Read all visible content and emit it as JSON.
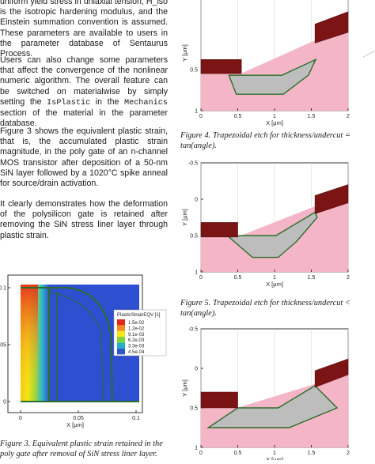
{
  "left_column": {
    "paragraphs": [
      {
        "id": "p1",
        "segments": [
          {
            "text": "uniform yield stress in uniaxial tension, H_iso"
          },
          {
            "text": " is the isotropic hardening modulus, and the Einstein summation convention is assumed. These parameters are available to users in the parameter database of Sentaurus Process."
          }
        ]
      },
      {
        "id": "p2",
        "segments": [
          {
            "text": "Users can also change some parameters that affect the convergence of the nonlinear numeric algorithm. The overall feature can be switched on materialwise by simply setting the "
          },
          {
            "text": "IsPlastic",
            "mono": true
          },
          {
            "text": " in the "
          },
          {
            "text": "Mechanics",
            "mono": true
          },
          {
            "text": " section of the material in the parameter database."
          }
        ]
      },
      {
        "id": "p3",
        "segments": [
          {
            "text": "Figure 3 shows the equivalent plastic strain, that is, the accumulated plastic strain magnitude, in the poly gate of an n-channel MOS transistor after deposition of a 50-nm SiN layer followed by a 1020°C spike anneal for source/drain activation."
          }
        ]
      },
      {
        "id": "p4",
        "segments": [
          {
            "text": "It clearly demonstrates how the deformation of the polysilicon gate is retained after removing the SiN stress liner layer through plastic strain."
          }
        ]
      }
    ],
    "figure3": {
      "legend_title": "PlasticStrainEQV [1]",
      "legend_values": [
        "1.5e-02",
        "1.2e-02",
        "9.1e-03",
        "6.2e-03",
        "3.3e-03",
        "4.5e-04"
      ],
      "legend_colors": [
        "#e3261c",
        "#f28a1e",
        "#f5e616",
        "#7fd23a",
        "#22b2c8",
        "#2e56c8"
      ],
      "y_ticks": [
        "0.1",
        "0.05",
        "0"
      ],
      "x_ticks": [
        "0",
        "0.05",
        "0.1"
      ],
      "x_label": "X [μm]",
      "caption": "Figure 3. Equivalent plastic strain retained in the poly gate after removal of SiN stress liner layer."
    }
  },
  "right_column": {
    "plots": [
      {
        "id": "fig-top",
        "y_ticks": [
          "0.5",
          "1"
        ],
        "x_ticks": [
          "0",
          "0.5",
          "1",
          "1.5",
          "2"
        ],
        "x_label": "X [μm]",
        "y_label": "Y [μm]",
        "caption": "Figure 4. Trapezoidal etch for thickness/undercut = tan(angle)."
      },
      {
        "id": "fig-mid",
        "y_ticks": [
          "-0.5",
          "0",
          "0.5",
          "1"
        ],
        "x_ticks": [
          "0",
          "0.5",
          "1",
          "1.5",
          "2"
        ],
        "x_label": "X [μm]",
        "y_label": "Y [μm]",
        "caption": "Figure 5. Trapezoidal etch for thickness/undercut < tan(angle)."
      },
      {
        "id": "fig-bottom",
        "y_ticks": [
          "-0.5",
          "0",
          "0.5",
          "1"
        ],
        "x_ticks": [
          "0",
          "0.5",
          "1",
          "1.5",
          "2"
        ],
        "x_label": "X [μm]",
        "y_label": "Y [μm]",
        "caption": ""
      }
    ],
    "colors": {
      "substrate": "#f4b6c6",
      "mask": "#7b1414",
      "etch": "#bdbdbd",
      "outline": "#2a6e2a"
    }
  }
}
